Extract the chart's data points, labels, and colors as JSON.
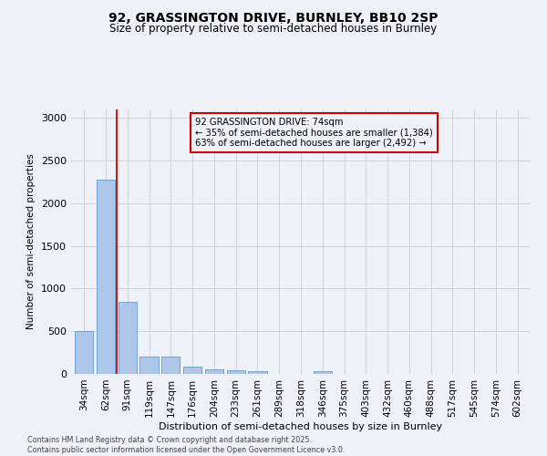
{
  "title_line1": "92, GRASSINGTON DRIVE, BURNLEY, BB10 2SP",
  "title_line2": "Size of property relative to semi-detached houses in Burnley",
  "xlabel": "Distribution of semi-detached houses by size in Burnley",
  "ylabel": "Number of semi-detached properties",
  "categories": [
    "34sqm",
    "62sqm",
    "91sqm",
    "119sqm",
    "147sqm",
    "176sqm",
    "204sqm",
    "233sqm",
    "261sqm",
    "289sqm",
    "318sqm",
    "346sqm",
    "375sqm",
    "403sqm",
    "432sqm",
    "460sqm",
    "488sqm",
    "517sqm",
    "545sqm",
    "574sqm",
    "602sqm"
  ],
  "values": [
    500,
    2280,
    840,
    200,
    200,
    85,
    55,
    40,
    35,
    0,
    0,
    30,
    0,
    0,
    0,
    0,
    0,
    0,
    0,
    0,
    0
  ],
  "bar_color": "#aec6e8",
  "bar_edge_color": "#5b9bd5",
  "grid_color": "#cccccc",
  "annotation_box_color": "#cc0000",
  "vline_color": "#cc0000",
  "annotation_title": "92 GRASSINGTON DRIVE: 74sqm",
  "annotation_line2": "← 35% of semi-detached houses are smaller (1,384)",
  "annotation_line3": "63% of semi-detached houses are larger (2,492) →",
  "ylim": [
    0,
    3100
  ],
  "footnote_line1": "Contains HM Land Registry data © Crown copyright and database right 2025.",
  "footnote_line2": "Contains public sector information licensed under the Open Government Licence v3.0.",
  "background_color": "#eef2f8"
}
